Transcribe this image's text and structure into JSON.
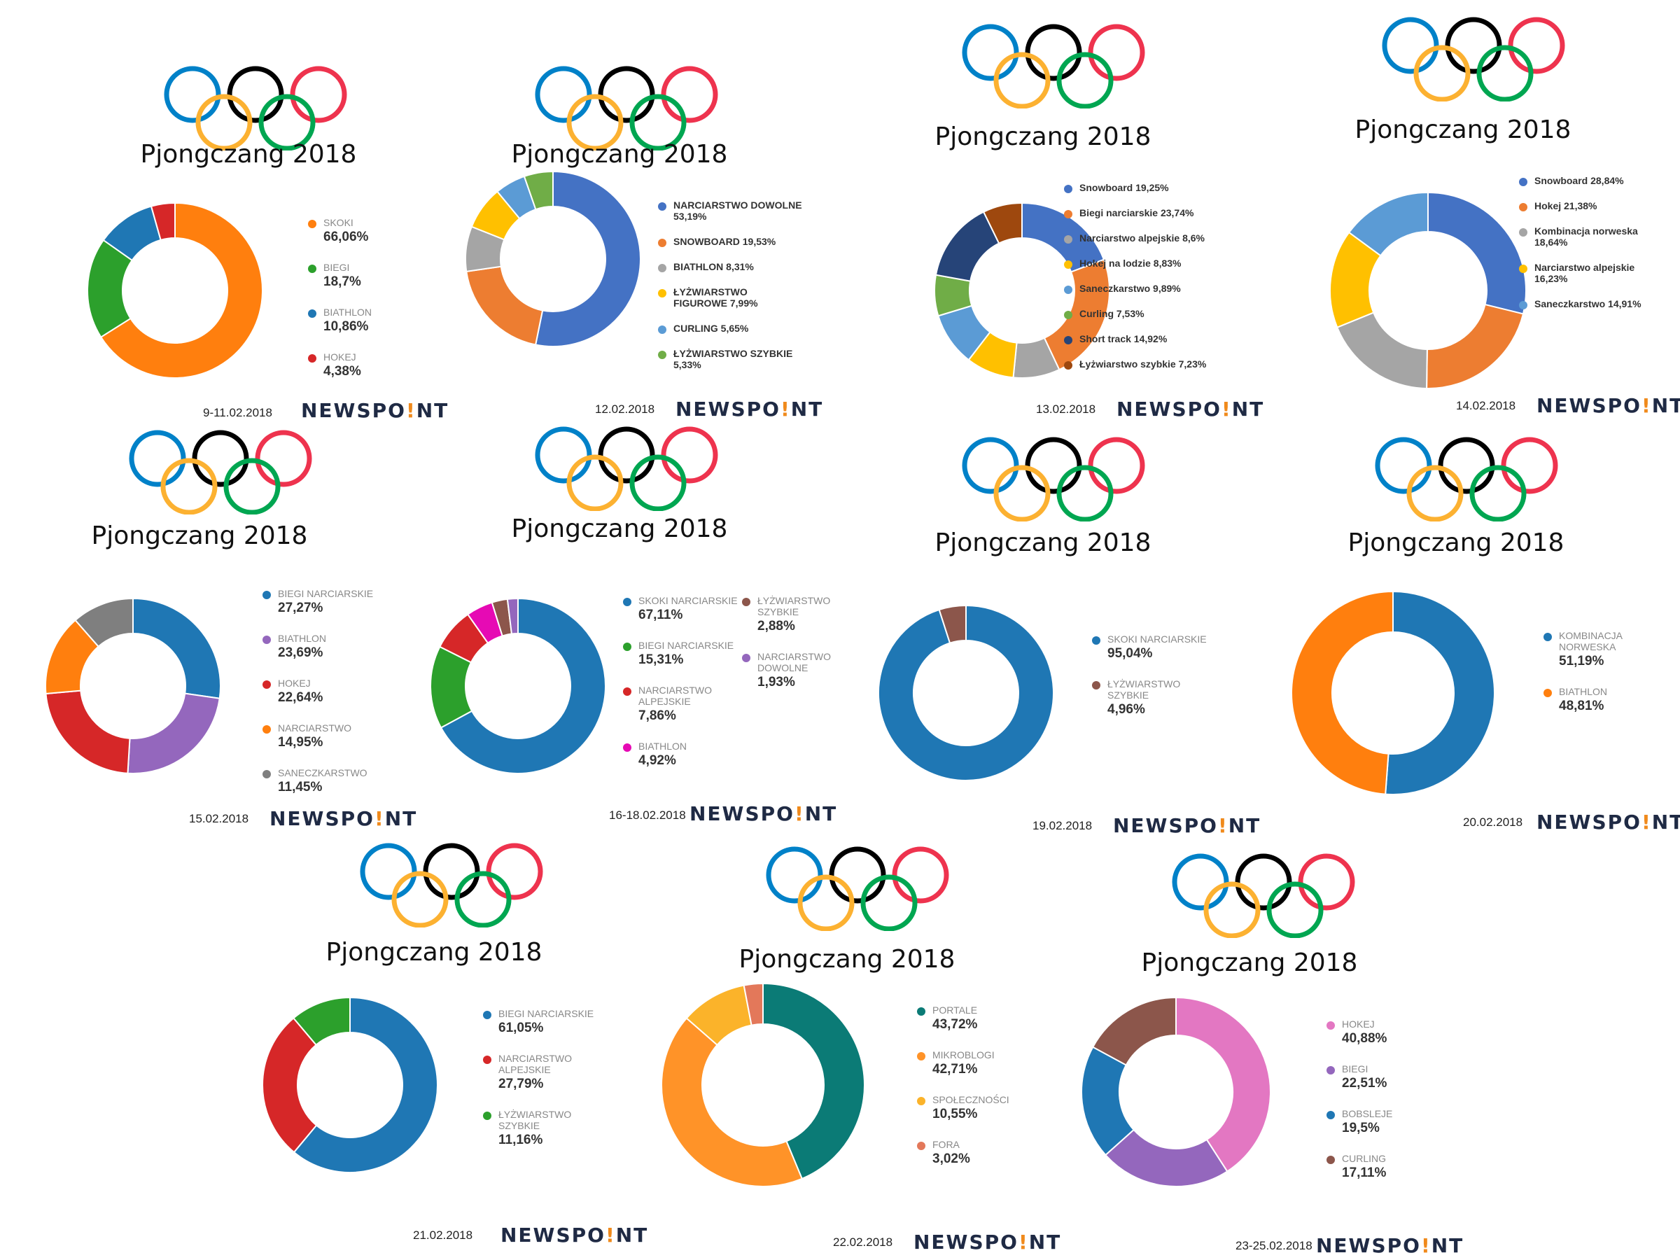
{
  "title": "Pjongczang 2018",
  "logo": {
    "before": "NEWSPO",
    "bang": "!",
    "after": "NT"
  },
  "ring_colors": [
    "#0081c8",
    "#000000",
    "#ee334e",
    "#fcb131",
    "#00a651"
  ],
  "chart_data": [
    {
      "type": "pie",
      "date": "9-11.02.2018",
      "legend_style": "stacked",
      "series": [
        {
          "name": "SKOKI",
          "value": 66.06,
          "label": "66,06%",
          "color": "#ff7f0e"
        },
        {
          "name": "BIEGI",
          "value": 18.7,
          "label": "18,7%",
          "color": "#2ca02c"
        },
        {
          "name": "BIATHLON",
          "value": 10.86,
          "label": "10,86%",
          "color": "#1f77b4"
        },
        {
          "name": "HOKEJ",
          "value": 4.38,
          "label": "4,38%",
          "color": "#d62728"
        }
      ]
    },
    {
      "type": "pie",
      "date": "12.02.2018",
      "legend_style": "inline",
      "series": [
        {
          "name": "NARCIARSTWO DOWOLNE\n53,19%",
          "value": 53.19,
          "color": "#4472c4"
        },
        {
          "name": "SNOWBOARD 19,53%",
          "value": 19.53,
          "color": "#ed7d31"
        },
        {
          "name": "BIATHLON 8,31%",
          "value": 8.31,
          "color": "#a5a5a5"
        },
        {
          "name": "ŁYŻWIARSTWO\nFIGUROWE 7,99%",
          "value": 7.99,
          "color": "#ffc000"
        },
        {
          "name": "CURLING 5,65%",
          "value": 5.65,
          "color": "#5b9bd5"
        },
        {
          "name": "ŁYŻWIARSTWO SZYBKIE\n5,33%",
          "value": 5.33,
          "color": "#70ad47"
        }
      ]
    },
    {
      "type": "pie",
      "date": "13.02.2018",
      "legend_style": "inline",
      "series": [
        {
          "name": "Snowboard 19,25%",
          "value": 19.25,
          "color": "#4472c4"
        },
        {
          "name": "Biegi narciarskie 23,74%",
          "value": 23.74,
          "color": "#ed7d31"
        },
        {
          "name": "Narciarstwo alpejskie 8,6%",
          "value": 8.6,
          "color": "#a5a5a5"
        },
        {
          "name": "Hokej na lodzie 8,83%",
          "value": 8.83,
          "color": "#ffc000"
        },
        {
          "name": "Saneczkarstwo 9,89%",
          "value": 9.89,
          "color": "#5b9bd5"
        },
        {
          "name": "Curling 7,53%",
          "value": 7.53,
          "color": "#70ad47"
        },
        {
          "name": "Short track 14,92%",
          "value": 14.92,
          "color": "#264478"
        },
        {
          "name": "Łyżwiarstwo szybkie 7,23%",
          "value": 7.23,
          "color": "#9e480e"
        }
      ],
      "note": "slices drawn in listed order: Snowboard, Biegi, Narciarstwo, Hokej, Saneczkarstwo, Curling, Short track, Łyżwiarstwo"
    },
    {
      "type": "pie",
      "date": "14.02.2018",
      "legend_style": "inline",
      "series": [
        {
          "name": "Snowboard 28,84%",
          "value": 28.84,
          "color": "#4472c4"
        },
        {
          "name": "Hokej 21,38%",
          "value": 21.38,
          "color": "#ed7d31"
        },
        {
          "name": "Kombinacja norweska\n18,64%",
          "value": 18.64,
          "color": "#a5a5a5"
        },
        {
          "name": "Narciarstwo alpejskie\n16,23%",
          "value": 16.23,
          "color": "#ffc000"
        },
        {
          "name": "Saneczkarstwo 14,91%",
          "value": 14.91,
          "color": "#5b9bd5"
        }
      ]
    },
    {
      "type": "pie",
      "date": "15.02.2018",
      "legend_style": "stacked",
      "series": [
        {
          "name": "BIEGI NARCIARSKIE",
          "value": 27.27,
          "label": "27,27%",
          "color": "#1f77b4"
        },
        {
          "name": "BIATHLON",
          "value": 23.69,
          "label": "23,69%",
          "color": "#9467bd"
        },
        {
          "name": "HOKEJ",
          "value": 22.64,
          "label": "22,64%",
          "color": "#d62728"
        },
        {
          "name": "NARCIARSTWO",
          "value": 14.95,
          "label": "14,95%",
          "color": "#ff7f0e"
        },
        {
          "name": "SANECZKARSTWO",
          "value": 11.45,
          "label": "11,45%",
          "color": "#7f7f7f"
        }
      ]
    },
    {
      "type": "pie",
      "date": "16-18.02.2018",
      "legend_style": "stacked",
      "series": [
        {
          "name": "SKOKI NARCIARSKIE",
          "value": 67.11,
          "label": "67,11%",
          "color": "#1f77b4"
        },
        {
          "name": "BIEGI NARCIARSKIE",
          "value": 15.31,
          "label": "15,31%",
          "color": "#2ca02c"
        },
        {
          "name": "NARCIARSTWO\nALPEJSKIE",
          "value": 7.86,
          "label": "7,86%",
          "color": "#d62728"
        },
        {
          "name": "BIATHLON",
          "value": 4.92,
          "label": "4,92%",
          "color": "#e60ab4"
        },
        {
          "name": "ŁYŻWIARSTWO\nSZYBKIE",
          "value": 2.88,
          "label": "2,88%",
          "color": "#8c564b"
        },
        {
          "name": "NARCIARSTWO\nDOWOLNE",
          "value": 1.93,
          "label": "1,93%",
          "color": "#9467bd"
        }
      ]
    },
    {
      "type": "pie",
      "date": "19.02.2018",
      "legend_style": "stacked",
      "series": [
        {
          "name": "SKOKI NARCIARSKIE",
          "value": 95.04,
          "label": "95,04%",
          "color": "#1f77b4"
        },
        {
          "name": "ŁYŻWIARSTWO\nSZYBKIE",
          "value": 4.96,
          "label": "4,96%",
          "color": "#8c564b"
        }
      ]
    },
    {
      "type": "pie",
      "date": "20.02.2018",
      "legend_style": "stacked",
      "series": [
        {
          "name": "KOMBINACJA\nNORWESKA",
          "value": 51.19,
          "label": "51,19%",
          "color": "#1f77b4"
        },
        {
          "name": "BIATHLON",
          "value": 48.81,
          "label": "48,81%",
          "color": "#ff7f0e"
        }
      ]
    },
    {
      "type": "pie",
      "date": "21.02.2018",
      "legend_style": "stacked",
      "series": [
        {
          "name": "BIEGI NARCIARSKIE",
          "value": 61.05,
          "label": "61,05%",
          "color": "#1f77b4"
        },
        {
          "name": "NARCIARSTWO\nALPEJSKIE",
          "value": 27.79,
          "label": "27,79%",
          "color": "#d62728"
        },
        {
          "name": "ŁYŻWIARSTWO\nSZYBKIE",
          "value": 11.16,
          "label": "11,16%",
          "color": "#2ca02c"
        }
      ]
    },
    {
      "type": "pie",
      "date": "22.02.2018",
      "legend_style": "stacked",
      "series": [
        {
          "name": "PORTALE",
          "value": 43.72,
          "label": "43,72%",
          "color": "#0b7b76"
        },
        {
          "name": "MIKROBLOGI",
          "value": 42.71,
          "label": "42,71%",
          "color": "#ff9328"
        },
        {
          "name": "SPOŁECZNOŚCI",
          "value": 10.55,
          "label": "10,55%",
          "color": "#fbb32a"
        },
        {
          "name": "FORA",
          "value": 3.02,
          "label": "3,02%",
          "color": "#e3785a"
        }
      ]
    },
    {
      "type": "pie",
      "date": "23-25.02.2018",
      "legend_style": "stacked",
      "series": [
        {
          "name": "HOKEJ",
          "value": 40.88,
          "label": "40,88%",
          "color": "#e377c2"
        },
        {
          "name": "BIEGI",
          "value": 22.51,
          "label": "22,51%",
          "color": "#9467bd"
        },
        {
          "name": "BOBSLEJE",
          "value": 19.5,
          "label": "19,5%",
          "color": "#1f77b4"
        },
        {
          "name": "CURLING",
          "value": 17.11,
          "label": "17,11%",
          "color": "#8c564b"
        }
      ]
    }
  ]
}
